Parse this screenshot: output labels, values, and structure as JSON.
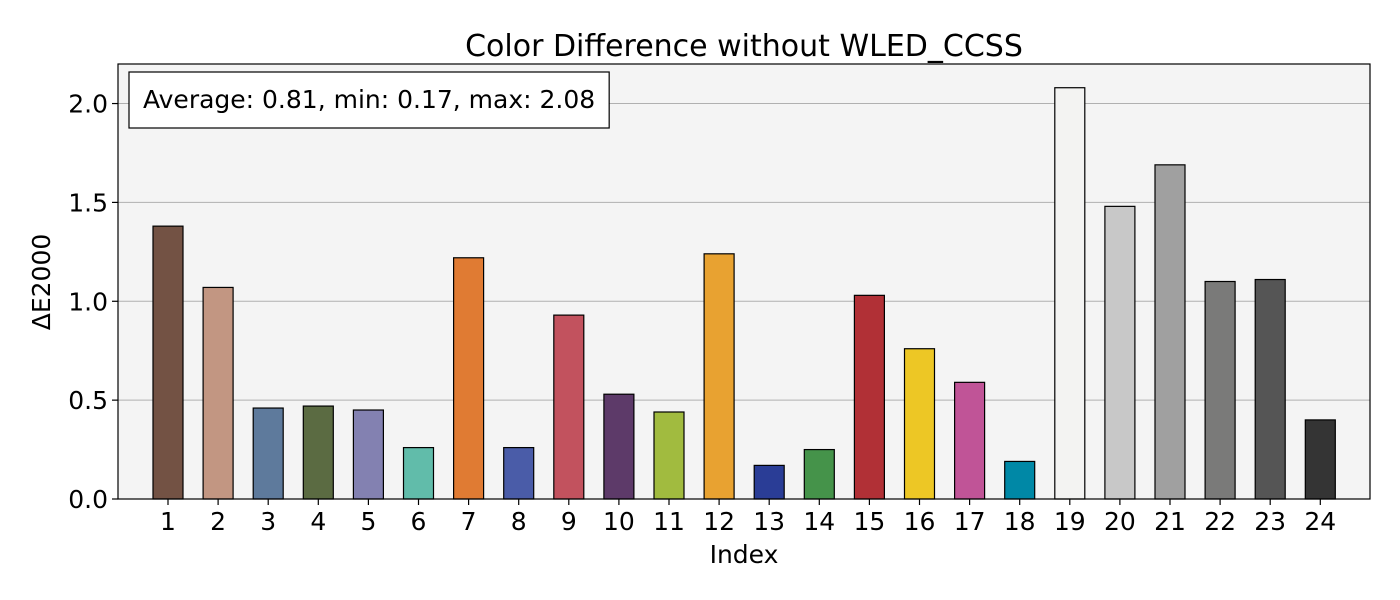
{
  "chart_data": {
    "type": "bar",
    "title": "Color Difference without WLED_CCSS",
    "xlabel": "Index",
    "ylabel": "ΔE2000",
    "ylim": [
      0,
      2.2
    ],
    "yticks": [
      0.0,
      0.5,
      1.0,
      1.5,
      2.0
    ],
    "ytick_labels": [
      "0.0",
      "0.5",
      "1.0",
      "1.5",
      "2.0"
    ],
    "grid": "y",
    "annotation": "Average: 0.81, min: 0.17, max: 2.08",
    "annotation_placement": "top-left",
    "categories": [
      "1",
      "2",
      "3",
      "4",
      "5",
      "6",
      "7",
      "8",
      "9",
      "10",
      "11",
      "12",
      "13",
      "14",
      "15",
      "16",
      "17",
      "18",
      "19",
      "20",
      "21",
      "22",
      "23",
      "24"
    ],
    "values": [
      1.38,
      1.07,
      0.46,
      0.47,
      0.45,
      0.26,
      1.22,
      0.26,
      0.93,
      0.53,
      0.44,
      1.24,
      0.17,
      0.25,
      1.03,
      0.76,
      0.59,
      0.19,
      2.08,
      1.48,
      1.69,
      1.1,
      1.11,
      0.4
    ],
    "colors": [
      "#735244",
      "#c29682",
      "#5e7a9c",
      "#5b6b42",
      "#8381b1",
      "#61bcaa",
      "#e07b33",
      "#4a5ca8",
      "#c2525e",
      "#5d3a69",
      "#a1bb3f",
      "#e8a231",
      "#2a3d96",
      "#45934a",
      "#b13036",
      "#edc725",
      "#c05497",
      "#0088a6",
      "#f3f3f2",
      "#c8c8c8",
      "#a0a0a0",
      "#7a7a79",
      "#555555",
      "#343434"
    ],
    "plot_background": "#f4f4f4",
    "grid_color": "#b0b0b0"
  }
}
